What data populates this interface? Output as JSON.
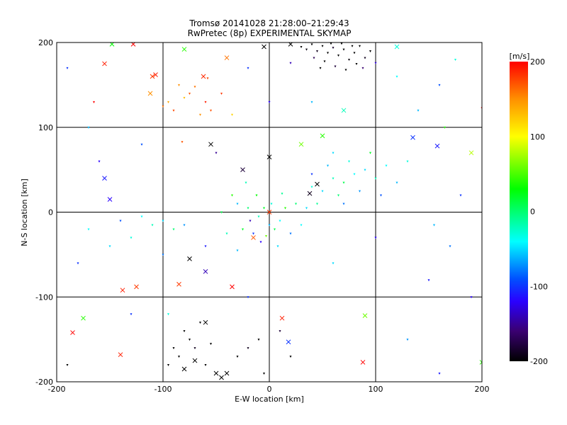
{
  "chart_data": {
    "type": "scatter",
    "title": "Tromsø 20141028 21:28:00–21:29:43",
    "subtitle": "RwPretec (8p) EXPERIMENTAL SKYMAP",
    "xlabel": "E-W location [km]",
    "ylabel": "N-S location [km]",
    "xlim": [
      -200,
      200
    ],
    "ylim": [
      -200,
      200
    ],
    "xticks": [
      "-200",
      "-100",
      "0",
      "100",
      "200"
    ],
    "yticks": [
      "-200",
      "-100",
      "0",
      "100",
      "200"
    ],
    "grid": true,
    "colorbar": {
      "label": "[m/s]",
      "range": [
        -200,
        200
      ],
      "ticks": [
        "200",
        "100",
        "0",
        "-100",
        "-200"
      ],
      "colors": [
        [
          "-200",
          "#000000"
        ],
        [
          "-160",
          "#3a0070"
        ],
        [
          "-120",
          "#2a00ff"
        ],
        [
          "-90",
          "#0050ff"
        ],
        [
          "-40",
          "#00ffff"
        ],
        [
          "0",
          "#00ff70"
        ],
        [
          "30",
          "#00ff00"
        ],
        [
          "100",
          "#ffff00"
        ],
        [
          "150",
          "#ff9000"
        ],
        [
          "200",
          "#ff0000"
        ]
      ]
    },
    "point_format": [
      "x_km",
      "y_km",
      "velocity_m_s",
      "marker_0dot_1cross"
    ],
    "points": [
      [
        30,
        195,
        -200,
        0
      ],
      [
        35,
        192,
        -195,
        0
      ],
      [
        40,
        198,
        -200,
        0
      ],
      [
        45,
        190,
        -190,
        0
      ],
      [
        50,
        196,
        -200,
        0
      ],
      [
        55,
        188,
        -200,
        0
      ],
      [
        60,
        194,
        -185,
        0
      ],
      [
        65,
        185,
        -200,
        0
      ],
      [
        70,
        192,
        -200,
        0
      ],
      [
        75,
        180,
        -195,
        0
      ],
      [
        80,
        188,
        -200,
        0
      ],
      [
        85,
        196,
        -200,
        0
      ],
      [
        90,
        182,
        -190,
        0
      ],
      [
        95,
        190,
        -200,
        0
      ],
      [
        52,
        178,
        -200,
        0
      ],
      [
        62,
        172,
        -180,
        0
      ],
      [
        72,
        168,
        -200,
        0
      ],
      [
        82,
        175,
        -200,
        0
      ],
      [
        42,
        182,
        -170,
        0
      ],
      [
        58,
        199,
        -200,
        0
      ],
      [
        88,
        170,
        -160,
        0
      ],
      [
        20,
        176,
        -140,
        0
      ],
      [
        100,
        176,
        -130,
        0
      ],
      [
        68,
        199,
        -200,
        0
      ],
      [
        48,
        170,
        -200,
        0
      ],
      [
        78,
        196,
        -200,
        0
      ],
      [
        -110,
        160,
        180,
        1
      ],
      [
        -107,
        162,
        190,
        1
      ],
      [
        -128,
        198,
        200,
        1
      ],
      [
        -155,
        175,
        190,
        1
      ],
      [
        -62,
        160,
        185,
        1
      ],
      [
        -58,
        158,
        175,
        0
      ],
      [
        -40,
        182,
        160,
        1
      ],
      [
        -85,
        150,
        150,
        0
      ],
      [
        -75,
        140,
        170,
        0
      ],
      [
        -70,
        148,
        160,
        0
      ],
      [
        -95,
        130,
        140,
        0
      ],
      [
        -100,
        125,
        160,
        0
      ],
      [
        -90,
        120,
        175,
        0
      ],
      [
        -80,
        135,
        130,
        0
      ],
      [
        -60,
        130,
        190,
        0
      ],
      [
        -55,
        120,
        170,
        0
      ],
      [
        -65,
        115,
        150,
        0
      ],
      [
        -45,
        140,
        180,
        0
      ],
      [
        -112,
        140,
        150,
        1
      ],
      [
        -165,
        130,
        200,
        0
      ],
      [
        -148,
        198,
        30,
        1
      ],
      [
        -80,
        192,
        40,
        1
      ],
      [
        -35,
        115,
        120,
        0
      ],
      [
        -82,
        83,
        170,
        0
      ],
      [
        -5,
        5,
        20,
        0
      ],
      [
        -10,
        -5,
        -20,
        0
      ],
      [
        0,
        -15,
        -60,
        0
      ],
      [
        5,
        -20,
        10,
        0
      ],
      [
        -15,
        -25,
        -100,
        0
      ],
      [
        10,
        -10,
        -40,
        0
      ],
      [
        -20,
        5,
        0,
        0
      ],
      [
        15,
        5,
        40,
        0
      ],
      [
        -8,
        -35,
        -120,
        0
      ],
      [
        2,
        10,
        -30,
        0
      ],
      [
        -25,
        -20,
        20,
        0
      ],
      [
        20,
        -25,
        -80,
        0
      ],
      [
        -3,
        -28,
        60,
        0
      ],
      [
        8,
        -40,
        -50,
        0
      ],
      [
        -30,
        10,
        -60,
        0
      ],
      [
        25,
        10,
        0,
        0
      ],
      [
        -12,
        20,
        30,
        0
      ],
      [
        12,
        22,
        -10,
        0
      ],
      [
        -18,
        -10,
        -140,
        0
      ],
      [
        0,
        0,
        180,
        1
      ],
      [
        -15,
        -30,
        170,
        1
      ],
      [
        -40,
        -25,
        -20,
        0
      ],
      [
        -30,
        -45,
        -60,
        0
      ],
      [
        30,
        -15,
        -40,
        0
      ],
      [
        -45,
        0,
        10,
        0
      ],
      [
        35,
        5,
        -50,
        0
      ],
      [
        -22,
        35,
        -20,
        0
      ],
      [
        -35,
        20,
        40,
        0
      ],
      [
        40,
        30,
        -30,
        0
      ],
      [
        50,
        25,
        -50,
        0
      ],
      [
        60,
        40,
        -20,
        0
      ],
      [
        70,
        35,
        10,
        0
      ],
      [
        80,
        45,
        -40,
        0
      ],
      [
        55,
        55,
        -60,
        0
      ],
      [
        65,
        20,
        0,
        0
      ],
      [
        75,
        60,
        -30,
        0
      ],
      [
        90,
        50,
        -50,
        0
      ],
      [
        100,
        40,
        -20,
        0
      ],
      [
        45,
        10,
        -10,
        0
      ],
      [
        85,
        25,
        -70,
        0
      ],
      [
        110,
        55,
        -40,
        0
      ],
      [
        95,
        70,
        20,
        0
      ],
      [
        60,
        70,
        -50,
        0
      ],
      [
        120,
        35,
        -60,
        0
      ],
      [
        40,
        45,
        -100,
        0
      ],
      [
        70,
        10,
        -80,
        0
      ],
      [
        130,
        60,
        -30,
        0
      ],
      [
        105,
        20,
        -90,
        0
      ],
      [
        38,
        22,
        -190,
        1
      ],
      [
        45,
        33,
        -200,
        1
      ],
      [
        30,
        80,
        60,
        1
      ],
      [
        50,
        90,
        40,
        1
      ],
      [
        158,
        78,
        -110,
        1
      ],
      [
        190,
        70,
        80,
        1
      ],
      [
        -110,
        -15,
        -20,
        0
      ],
      [
        -100,
        -10,
        -50,
        0
      ],
      [
        -90,
        -20,
        0,
        0
      ],
      [
        -120,
        -5,
        -40,
        0
      ],
      [
        -80,
        -15,
        -70,
        0
      ],
      [
        -130,
        -30,
        -30,
        0
      ],
      [
        -150,
        -40,
        -50,
        0
      ],
      [
        -140,
        -10,
        -90,
        0
      ],
      [
        -170,
        -20,
        -40,
        0
      ],
      [
        -60,
        -40,
        -110,
        0
      ],
      [
        -155,
        40,
        -110,
        1
      ],
      [
        -150,
        15,
        -120,
        1
      ],
      [
        -80,
        -140,
        -200,
        0
      ],
      [
        -75,
        -150,
        -200,
        0
      ],
      [
        -70,
        -160,
        -190,
        0
      ],
      [
        -85,
        -170,
        -200,
        0
      ],
      [
        -60,
        -180,
        -200,
        0
      ],
      [
        -50,
        -190,
        -200,
        1
      ],
      [
        -45,
        -195,
        -200,
        1
      ],
      [
        -40,
        -190,
        -200,
        1
      ],
      [
        -70,
        -175,
        -200,
        1
      ],
      [
        -90,
        -160,
        -200,
        0
      ],
      [
        -65,
        -130,
        -200,
        0
      ],
      [
        -55,
        -155,
        -200,
        0
      ],
      [
        -95,
        -180,
        -200,
        0
      ],
      [
        -30,
        -170,
        -200,
        0
      ],
      [
        -20,
        -160,
        -190,
        0
      ],
      [
        -10,
        -150,
        -200,
        0
      ],
      [
        -5,
        -190,
        -200,
        0
      ],
      [
        10,
        -140,
        -180,
        0
      ],
      [
        20,
        -170,
        -200,
        0
      ],
      [
        -80,
        -185,
        -200,
        1
      ],
      [
        -60,
        -130,
        -200,
        1
      ],
      [
        -185,
        -142,
        200,
        1
      ],
      [
        -175,
        -125,
        40,
        1
      ],
      [
        -140,
        -168,
        190,
        1
      ],
      [
        -138,
        -92,
        190,
        1
      ],
      [
        -125,
        -88,
        180,
        1
      ],
      [
        -85,
        -85,
        180,
        1
      ],
      [
        -35,
        -88,
        200,
        1
      ],
      [
        12,
        -125,
        190,
        1
      ],
      [
        90,
        -122,
        60,
        1
      ],
      [
        88,
        -177,
        200,
        1
      ],
      [
        18,
        -153,
        -100,
        1
      ],
      [
        200,
        -177,
        40,
        1
      ],
      [
        200,
        123,
        200,
        0
      ],
      [
        -180,
        -60,
        -100,
        0
      ],
      [
        -160,
        60,
        -120,
        0
      ],
      [
        -120,
        80,
        -90,
        0
      ],
      [
        -170,
        100,
        -60,
        0
      ],
      [
        -130,
        -120,
        -100,
        0
      ],
      [
        150,
        -80,
        -110,
        0
      ],
      [
        170,
        -40,
        -80,
        0
      ],
      [
        180,
        20,
        -100,
        0
      ],
      [
        160,
        150,
        -90,
        0
      ],
      [
        140,
        120,
        -60,
        0
      ],
      [
        120,
        160,
        -40,
        0
      ],
      [
        175,
        180,
        -30,
        0
      ],
      [
        190,
        -100,
        -120,
        0
      ],
      [
        130,
        -150,
        -70,
        0
      ],
      [
        160,
        -190,
        -110,
        0
      ],
      [
        -190,
        -180,
        -200,
        0
      ],
      [
        -190,
        170,
        -100,
        0
      ],
      [
        -50,
        70,
        -150,
        0
      ],
      [
        -25,
        50,
        -180,
        1
      ],
      [
        0,
        65,
        -200,
        1
      ],
      [
        -55,
        80,
        -200,
        1
      ],
      [
        -20,
        -100,
        -100,
        0
      ],
      [
        60,
        -60,
        -50,
        0
      ],
      [
        100,
        -30,
        -120,
        0
      ],
      [
        -100,
        -50,
        -80,
        0
      ],
      [
        -60,
        -70,
        -140,
        1
      ],
      [
        -75,
        -55,
        -200,
        1
      ],
      [
        -95,
        -120,
        -30,
        0
      ],
      [
        155,
        -15,
        -60,
        0
      ],
      [
        40,
        130,
        -60,
        0
      ],
      [
        0,
        130,
        -120,
        0
      ],
      [
        -20,
        170,
        -100,
        0
      ],
      [
        -5,
        195,
        -200,
        1
      ],
      [
        20,
        198,
        -200,
        1
      ],
      [
        120,
        195,
        -30,
        1
      ],
      [
        135,
        88,
        -100,
        1
      ],
      [
        70,
        120,
        -20,
        1
      ],
      [
        165,
        100,
        40,
        0
      ]
    ]
  }
}
